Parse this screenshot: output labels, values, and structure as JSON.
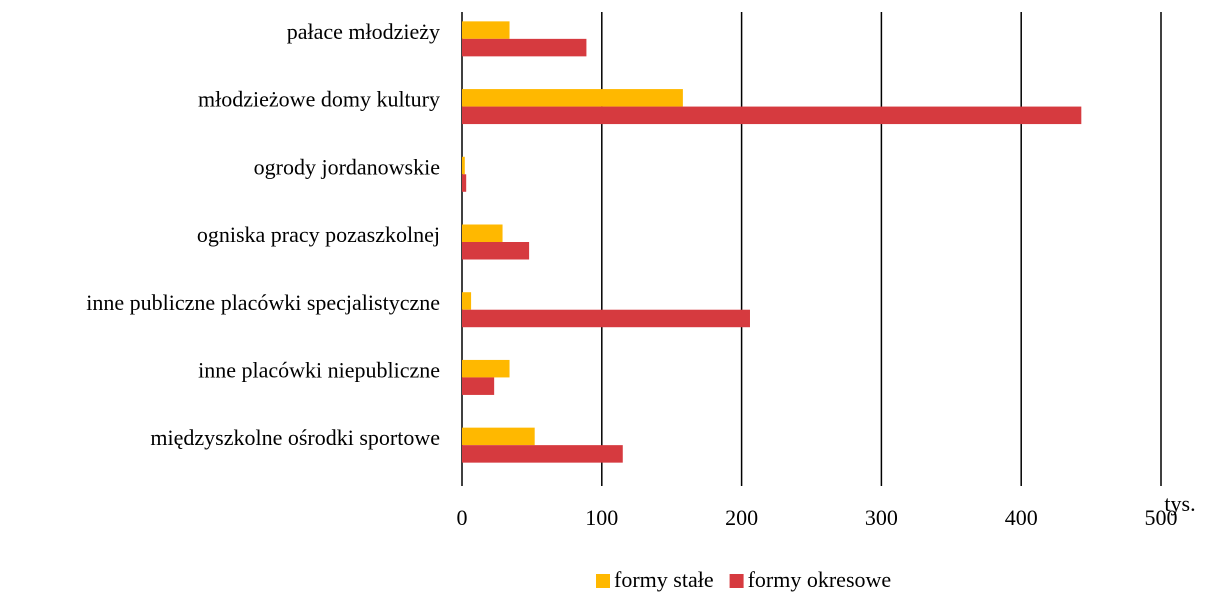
{
  "chart_data": {
    "type": "hbar",
    "categories": [
      "pałace młodzieży",
      "młodzieżowe domy kultury",
      "ogrody jordanowskie",
      "ogniska pracy pozaszkolnej",
      "inne publiczne placówki specjalistyczne",
      "inne placówki niepubliczne",
      "międzyszkolne ośrodki sportowe"
    ],
    "series": [
      {
        "name": "formy stałe",
        "color": "#ffb800",
        "values": [
          34,
          158,
          2,
          29,
          6.5,
          34,
          52
        ]
      },
      {
        "name": "formy okresowe",
        "color": "#d63a3f",
        "values": [
          89,
          443,
          3,
          48,
          206,
          23,
          115
        ]
      }
    ],
    "x_label": "tys.",
    "xlim": [
      0,
      500
    ],
    "xticks": [
      0,
      100,
      200,
      300,
      400,
      500
    ],
    "grid": true,
    "legend": "bottom"
  }
}
